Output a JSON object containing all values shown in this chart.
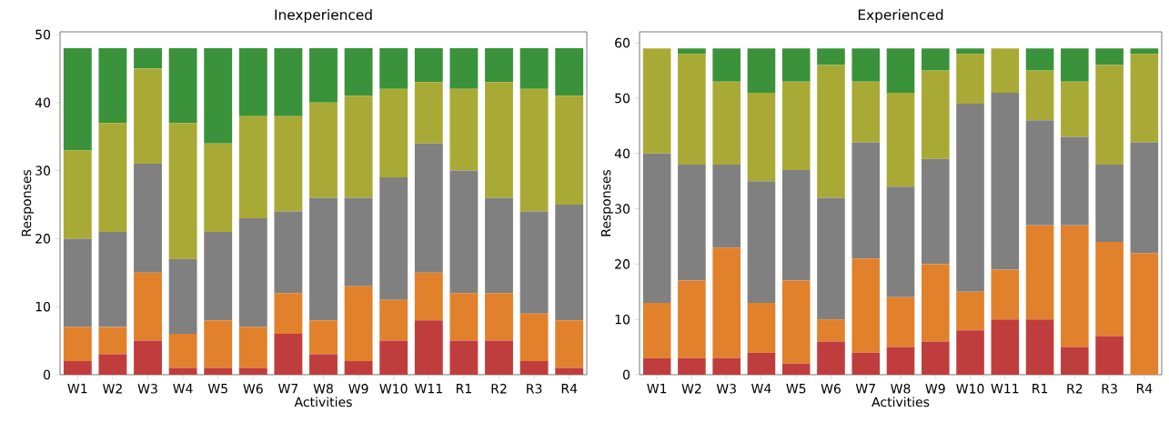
{
  "chart_data": [
    {
      "type": "bar",
      "stacked": true,
      "title": "Inexperienced",
      "xlabel": "Activities",
      "ylabel": "Responses",
      "categories": [
        "W1",
        "W2",
        "W3",
        "W4",
        "W5",
        "W6",
        "W7",
        "W8",
        "W9",
        "W10",
        "W11",
        "R1",
        "R2",
        "R3",
        "R4"
      ],
      "series": [
        {
          "color": "#c03d3e",
          "values": [
            2,
            3,
            5,
            1,
            1,
            1,
            6,
            3,
            2,
            5,
            8,
            5,
            5,
            2,
            1
          ]
        },
        {
          "color": "#e1812c",
          "values": [
            5,
            4,
            10,
            5,
            7,
            6,
            6,
            5,
            11,
            6,
            7,
            7,
            7,
            7,
            7
          ]
        },
        {
          "color": "#808080",
          "values": [
            13,
            14,
            16,
            11,
            13,
            16,
            12,
            18,
            13,
            18,
            19,
            18,
            14,
            15,
            17
          ]
        },
        {
          "color": "#a9aa35",
          "values": [
            13,
            16,
            14,
            20,
            13,
            15,
            14,
            14,
            15,
            13,
            9,
            12,
            17,
            18,
            16
          ]
        },
        {
          "color": "#3a923a",
          "values": [
            15,
            11,
            3,
            11,
            14,
            10,
            10,
            8,
            7,
            6,
            5,
            6,
            5,
            6,
            7
          ]
        }
      ],
      "ylim": [
        0,
        50.4
      ],
      "yticks": [
        0,
        10,
        20,
        30,
        40,
        50
      ]
    },
    {
      "type": "bar",
      "stacked": true,
      "title": "Experienced",
      "xlabel": "Activities",
      "ylabel": "Responses",
      "categories": [
        "W1",
        "W2",
        "W3",
        "W4",
        "W5",
        "W6",
        "W7",
        "W8",
        "W9",
        "W10",
        "W11",
        "R1",
        "R2",
        "R3",
        "R4"
      ],
      "series": [
        {
          "color": "#c03d3e",
          "values": [
            3,
            3,
            3,
            4,
            2,
            6,
            4,
            5,
            6,
            8,
            10,
            10,
            5,
            7,
            0
          ]
        },
        {
          "color": "#e1812c",
          "values": [
            10,
            14,
            20,
            9,
            15,
            4,
            17,
            9,
            14,
            7,
            9,
            17,
            22,
            17,
            22
          ]
        },
        {
          "color": "#808080",
          "values": [
            27,
            21,
            15,
            22,
            20,
            22,
            21,
            20,
            19,
            34,
            32,
            19,
            16,
            14,
            20
          ]
        },
        {
          "color": "#a9aa35",
          "values": [
            19,
            20,
            15,
            16,
            16,
            24,
            11,
            17,
            16,
            9,
            8,
            9,
            10,
            18,
            16
          ]
        },
        {
          "color": "#3a923a",
          "values": [
            0,
            1,
            6,
            8,
            6,
            3,
            6,
            8,
            4,
            1,
            0,
            4,
            6,
            3,
            1
          ]
        }
      ],
      "ylim": [
        0,
        62
      ],
      "yticks": [
        0,
        10,
        20,
        30,
        40,
        50,
        60
      ]
    }
  ]
}
